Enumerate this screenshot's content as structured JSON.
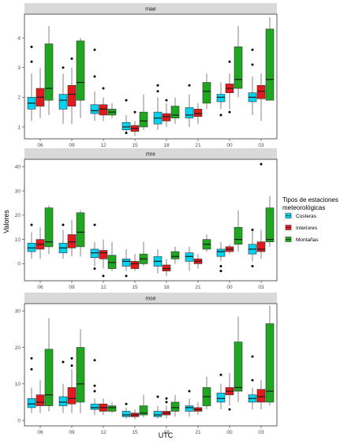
{
  "chart_data": {
    "type": "boxplot",
    "xlabel": "UTC",
    "ylabel": "Valores",
    "categories": [
      "06",
      "09",
      "12",
      "15",
      "18",
      "21",
      "00",
      "03"
    ],
    "legend": {
      "title_lines": [
        "Tipos de estaciones",
        "meteorológicas"
      ],
      "position": "right",
      "entries": [
        {
          "name": "Costeras",
          "color": "#00d3f0"
        },
        {
          "name": "Interiores",
          "color": "#e31a1c"
        },
        {
          "name": "Montañas",
          "color": "#1fa81f"
        }
      ]
    },
    "panels": [
      {
        "strip": "mae",
        "ylim": [
          0.6,
          4.8
        ],
        "yticks": [
          1,
          2,
          3,
          4
        ],
        "groups": [
          {
            "Costeras": [
              1.2,
              1.6,
              1.8,
              2.0,
              2.8
            ],
            "Interiores": [
              1.3,
              1.7,
              2.0,
              2.3,
              3.0
            ],
            "Montañas": [
              1.4,
              1.9,
              2.3,
              3.8,
              4.4
            ]
          },
          {
            "Costeras": [
              1.1,
              1.6,
              1.9,
              2.1,
              2.8
            ],
            "Interiores": [
              1.1,
              1.7,
              2.1,
              2.4,
              3.0
            ],
            "Montañas": [
              1.3,
              1.9,
              2.5,
              3.9,
              4.0
            ]
          },
          {
            "Costeras": [
              1.2,
              1.45,
              1.55,
              1.75,
              2.2
            ],
            "Interiores": [
              1.2,
              1.4,
              1.6,
              1.75,
              2.0
            ],
            "Montañas": [
              1.3,
              1.4,
              1.5,
              1.6,
              1.8
            ]
          },
          {
            "Costeras": [
              0.8,
              0.9,
              1.0,
              1.15,
              1.4
            ],
            "Interiores": [
              0.7,
              0.85,
              0.95,
              1.05,
              1.2
            ],
            "Montañas": [
              0.9,
              1.0,
              1.2,
              1.5,
              2.1
            ]
          },
          {
            "Costeras": [
              0.9,
              1.1,
              1.3,
              1.5,
              2.0
            ],
            "Interiores": [
              1.0,
              1.2,
              1.35,
              1.45,
              1.8
            ],
            "Montañas": [
              1.1,
              1.3,
              1.4,
              1.7,
              2.0
            ]
          },
          {
            "Costeras": [
              1.0,
              1.3,
              1.4,
              1.65,
              2.1
            ],
            "Interiores": [
              1.1,
              1.35,
              1.45,
              1.6,
              1.8
            ],
            "Montañas": [
              1.6,
              1.8,
              2.2,
              2.5,
              2.8
            ]
          },
          {
            "Costeras": [
              1.6,
              1.85,
              2.0,
              2.1,
              2.5
            ],
            "Interiores": [
              1.6,
              2.15,
              2.3,
              2.45,
              2.8
            ],
            "Montañas": [
              2.0,
              2.3,
              2.6,
              3.7,
              4.4
            ]
          },
          {
            "Costeras": [
              1.4,
              1.85,
              2.0,
              2.15,
              2.7
            ],
            "Interiores": [
              1.2,
              1.95,
              2.2,
              2.4,
              2.8
            ],
            "Montañas": [
              1.9,
              1.9,
              2.6,
              4.3,
              4.7
            ]
          }
        ],
        "outliers": [
          {
            "category": "06",
            "series": "Costeras",
            "values": [
              3.2,
              3.7
            ]
          },
          {
            "category": "09",
            "series": "Costeras",
            "values": [
              3.0
            ]
          },
          {
            "category": "09",
            "series": "Interiores",
            "values": [
              3.3
            ]
          },
          {
            "category": "12",
            "series": "Costeras",
            "values": [
              3.6,
              2.7
            ]
          },
          {
            "category": "12",
            "series": "Interiores",
            "values": [
              2.3
            ]
          },
          {
            "category": "15",
            "series": "Costeras",
            "values": [
              1.9,
              0.8
            ]
          },
          {
            "category": "15",
            "series": "Interiores",
            "values": [
              1.5
            ]
          },
          {
            "category": "18",
            "series": "Costeras",
            "values": [
              2.4,
              2.2
            ]
          },
          {
            "category": "18",
            "series": "Interiores",
            "values": [
              1.9
            ]
          },
          {
            "category": "21",
            "series": "Costeras",
            "values": [
              2.4
            ]
          },
          {
            "category": "00",
            "series": "Costeras",
            "values": [
              1.4
            ]
          },
          {
            "category": "00",
            "series": "Interiores",
            "values": [
              3.2,
              1.5
            ]
          },
          {
            "category": "03",
            "series": "Costeras",
            "values": [
              3.6,
              3.1
            ]
          }
        ]
      },
      {
        "strip": "mre",
        "ylim": [
          -7,
          43
        ],
        "yticks": [
          0,
          10,
          20,
          30,
          40
        ],
        "groups": [
          {
            "Costeras": [
              2,
              5,
              6.5,
              8.5,
              13
            ],
            "Interiores": [
              2,
              6,
              8,
              10,
              15
            ],
            "Montañas": [
              4,
              7,
              9,
              23,
              24
            ]
          },
          {
            "Costeras": [
              2,
              4.5,
              6.5,
              8.5,
              14
            ],
            "Interiores": [
              3,
              6.5,
              9,
              12,
              18
            ],
            "Montañas": [
              3,
              7,
              13,
              21,
              22
            ]
          },
          {
            "Costeras": [
              -1,
              2.5,
              4.5,
              6,
              9
            ],
            "Interiores": [
              -2,
              2,
              4.5,
              5.5,
              10
            ],
            "Montañas": [
              -3,
              -2,
              0.5,
              3.5,
              9
            ]
          },
          {
            "Costeras": [
              -3,
              -1,
              1,
              2,
              6
            ],
            "Interiores": [
              -3,
              -2,
              0,
              1,
              4
            ],
            "Montañas": [
              -1,
              0,
              2,
              4,
              9
            ]
          },
          {
            "Costeras": [
              -4,
              -1,
              1,
              3,
              6
            ],
            "Interiores": [
              -5,
              -3,
              -2,
              -0.5,
              2
            ],
            "Montañas": [
              0,
              2,
              3,
              5,
              7
            ]
          },
          {
            "Costeras": [
              -3,
              1,
              3,
              4.5,
              7
            ],
            "Interiores": [
              -2,
              0,
              1,
              2,
              4
            ],
            "Montañas": [
              5,
              6,
              8,
              10,
              12
            ]
          },
          {
            "Costeras": [
              1,
              3,
              5,
              6,
              9
            ],
            "Interiores": [
              4,
              5,
              6,
              7,
              8
            ],
            "Montañas": [
              5,
              8,
              10,
              15,
              22
            ]
          },
          {
            "Costeras": [
              1,
              4,
              6,
              8,
              14
            ],
            "Interiores": [
              2,
              5,
              6,
              9,
              14
            ],
            "Montañas": [
              7,
              9,
              10,
              23,
              28
            ]
          }
        ],
        "outliers": [
          {
            "category": "06",
            "series": "Costeras",
            "values": [
              16
            ]
          },
          {
            "category": "09",
            "series": "Costeras",
            "values": [
              16
            ]
          },
          {
            "category": "12",
            "series": "Costeras",
            "values": [
              16,
              -2
            ]
          },
          {
            "category": "12",
            "series": "Interiores",
            "values": [
              -5
            ]
          },
          {
            "category": "15",
            "series": "Costeras",
            "values": [
              -5
            ]
          },
          {
            "category": "00",
            "series": "Costeras",
            "values": [
              -1,
              -3
            ]
          },
          {
            "category": "03",
            "series": "Costeras",
            "values": [
              14,
              -1
            ]
          },
          {
            "category": "03",
            "series": "Interiores",
            "values": [
              41
            ]
          }
        ]
      },
      {
        "strip": "mse",
        "ylim": [
          -1.5,
          32
        ],
        "yticks": [
          0,
          10,
          20,
          30
        ],
        "groups": [
          {
            "Costeras": [
              2,
              3.5,
              4.5,
              6,
              9
            ],
            "Interiores": [
              2,
              4,
              5,
              7,
              11
            ],
            "Montañas": [
              2.5,
              4,
              7,
              19.5,
              28
            ]
          },
          {
            "Costeras": [
              2,
              4,
              5,
              6.5,
              10
            ],
            "Interiores": [
              2,
              4.5,
              6,
              9,
              14
            ],
            "Montañas": [
              2,
              5,
              10,
              20,
              25
            ]
          },
          {
            "Costeras": [
              1.5,
              3,
              3.5,
              4.5,
              6
            ],
            "Interiores": [
              1.5,
              2.5,
              3.5,
              4.5,
              6
            ],
            "Montañas": [
              2,
              2.5,
              3.5,
              4,
              5
            ]
          },
          {
            "Costeras": [
              0.5,
              1,
              1.5,
              2.5,
              3.5
            ],
            "Interiores": [
              0.3,
              1,
              1.5,
              2,
              3
            ],
            "Montañas": [
              0.8,
              1.5,
              2,
              4,
              7
            ]
          },
          {
            "Costeras": [
              0.5,
              1,
              1.5,
              2.5,
              4
            ],
            "Interiores": [
              0.5,
              1.5,
              2,
              2.5,
              4
            ],
            "Montañas": [
              1,
              2.5,
              3.5,
              5,
              7
            ]
          },
          {
            "Costeras": [
              1,
              2.5,
              3.5,
              4,
              6
            ],
            "Interiores": [
              1.5,
              2.5,
              3,
              3.5,
              5
            ],
            "Montañas": [
              3,
              4,
              6.5,
              9,
              12
            ]
          },
          {
            "Costeras": [
              3,
              5,
              6,
              7.5,
              10
            ],
            "Interiores": [
              4,
              7,
              8,
              9,
              13
            ],
            "Montañas": [
              5,
              8,
              9,
              21.5,
              28.5
            ]
          },
          {
            "Costeras": [
              3,
              5,
              6,
              7,
              9
            ],
            "Interiores": [
              3,
              5,
              6.5,
              8.5,
              11
            ],
            "Montañas": [
              4,
              5,
              8,
              26.5,
              31.5
            ]
          }
        ],
        "outliers": [
          {
            "category": "06",
            "series": "Costeras",
            "values": [
              17,
              14
            ]
          },
          {
            "category": "09",
            "series": "Costeras",
            "values": [
              16
            ]
          },
          {
            "category": "09",
            "series": "Interiores",
            "values": [
              17,
              15
            ]
          },
          {
            "category": "12",
            "series": "Costeras",
            "values": [
              16.5,
              9.5,
              8
            ]
          },
          {
            "category": "15",
            "series": "Costeras",
            "values": [
              4.5
            ]
          },
          {
            "category": "18",
            "series": "Costeras",
            "values": [
              6.5
            ]
          },
          {
            "category": "18",
            "series": "Interiores",
            "values": [
              6,
              5
            ]
          },
          {
            "category": "21",
            "series": "Costeras",
            "values": [
              8
            ]
          },
          {
            "category": "00",
            "series": "Costeras",
            "values": [
              12.5
            ]
          },
          {
            "category": "00",
            "series": "Interiores",
            "values": [
              3
            ]
          },
          {
            "category": "03",
            "series": "Costeras",
            "values": [
              17.5,
              11
            ]
          }
        ]
      }
    ]
  }
}
